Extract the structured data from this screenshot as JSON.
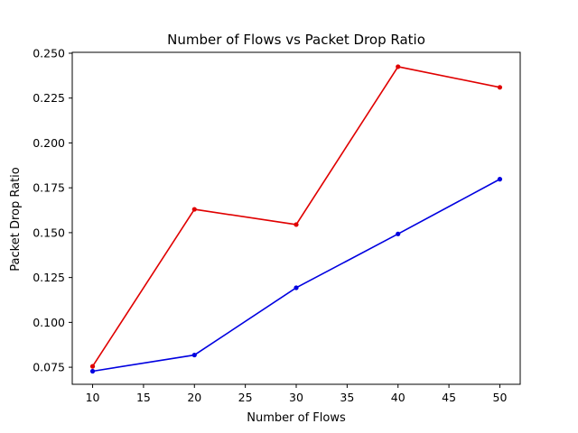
{
  "chart_data": {
    "type": "line",
    "title": "Number of Flows vs Packet Drop Ratio",
    "xlabel": "Number of Flows",
    "ylabel": "Packet Drop Ratio",
    "x": [
      10,
      20,
      30,
      40,
      50
    ],
    "xlim": [
      8,
      52
    ],
    "ylim": [
      0.0655,
      0.2505
    ],
    "xticks": [
      10,
      15,
      20,
      25,
      30,
      35,
      40,
      45,
      50
    ],
    "yticks": [
      0.075,
      0.1,
      0.125,
      0.15,
      0.175,
      0.2,
      0.225,
      0.25
    ],
    "xtick_labels": [
      "10",
      "15",
      "20",
      "25",
      "30",
      "35",
      "40",
      "45",
      "50"
    ],
    "ytick_labels": [
      "0.075",
      "0.100",
      "0.125",
      "0.150",
      "0.175",
      "0.200",
      "0.225",
      "0.250"
    ],
    "grid": false,
    "series": [
      {
        "color": "#e00000",
        "marker": "circle",
        "values": [
          0.0755,
          0.163,
          0.1545,
          0.2425,
          0.231
        ]
      },
      {
        "color": "#0000e0",
        "marker": "circle",
        "values": [
          0.0728,
          0.0818,
          0.1193,
          0.1493,
          0.1798
        ]
      }
    ]
  }
}
